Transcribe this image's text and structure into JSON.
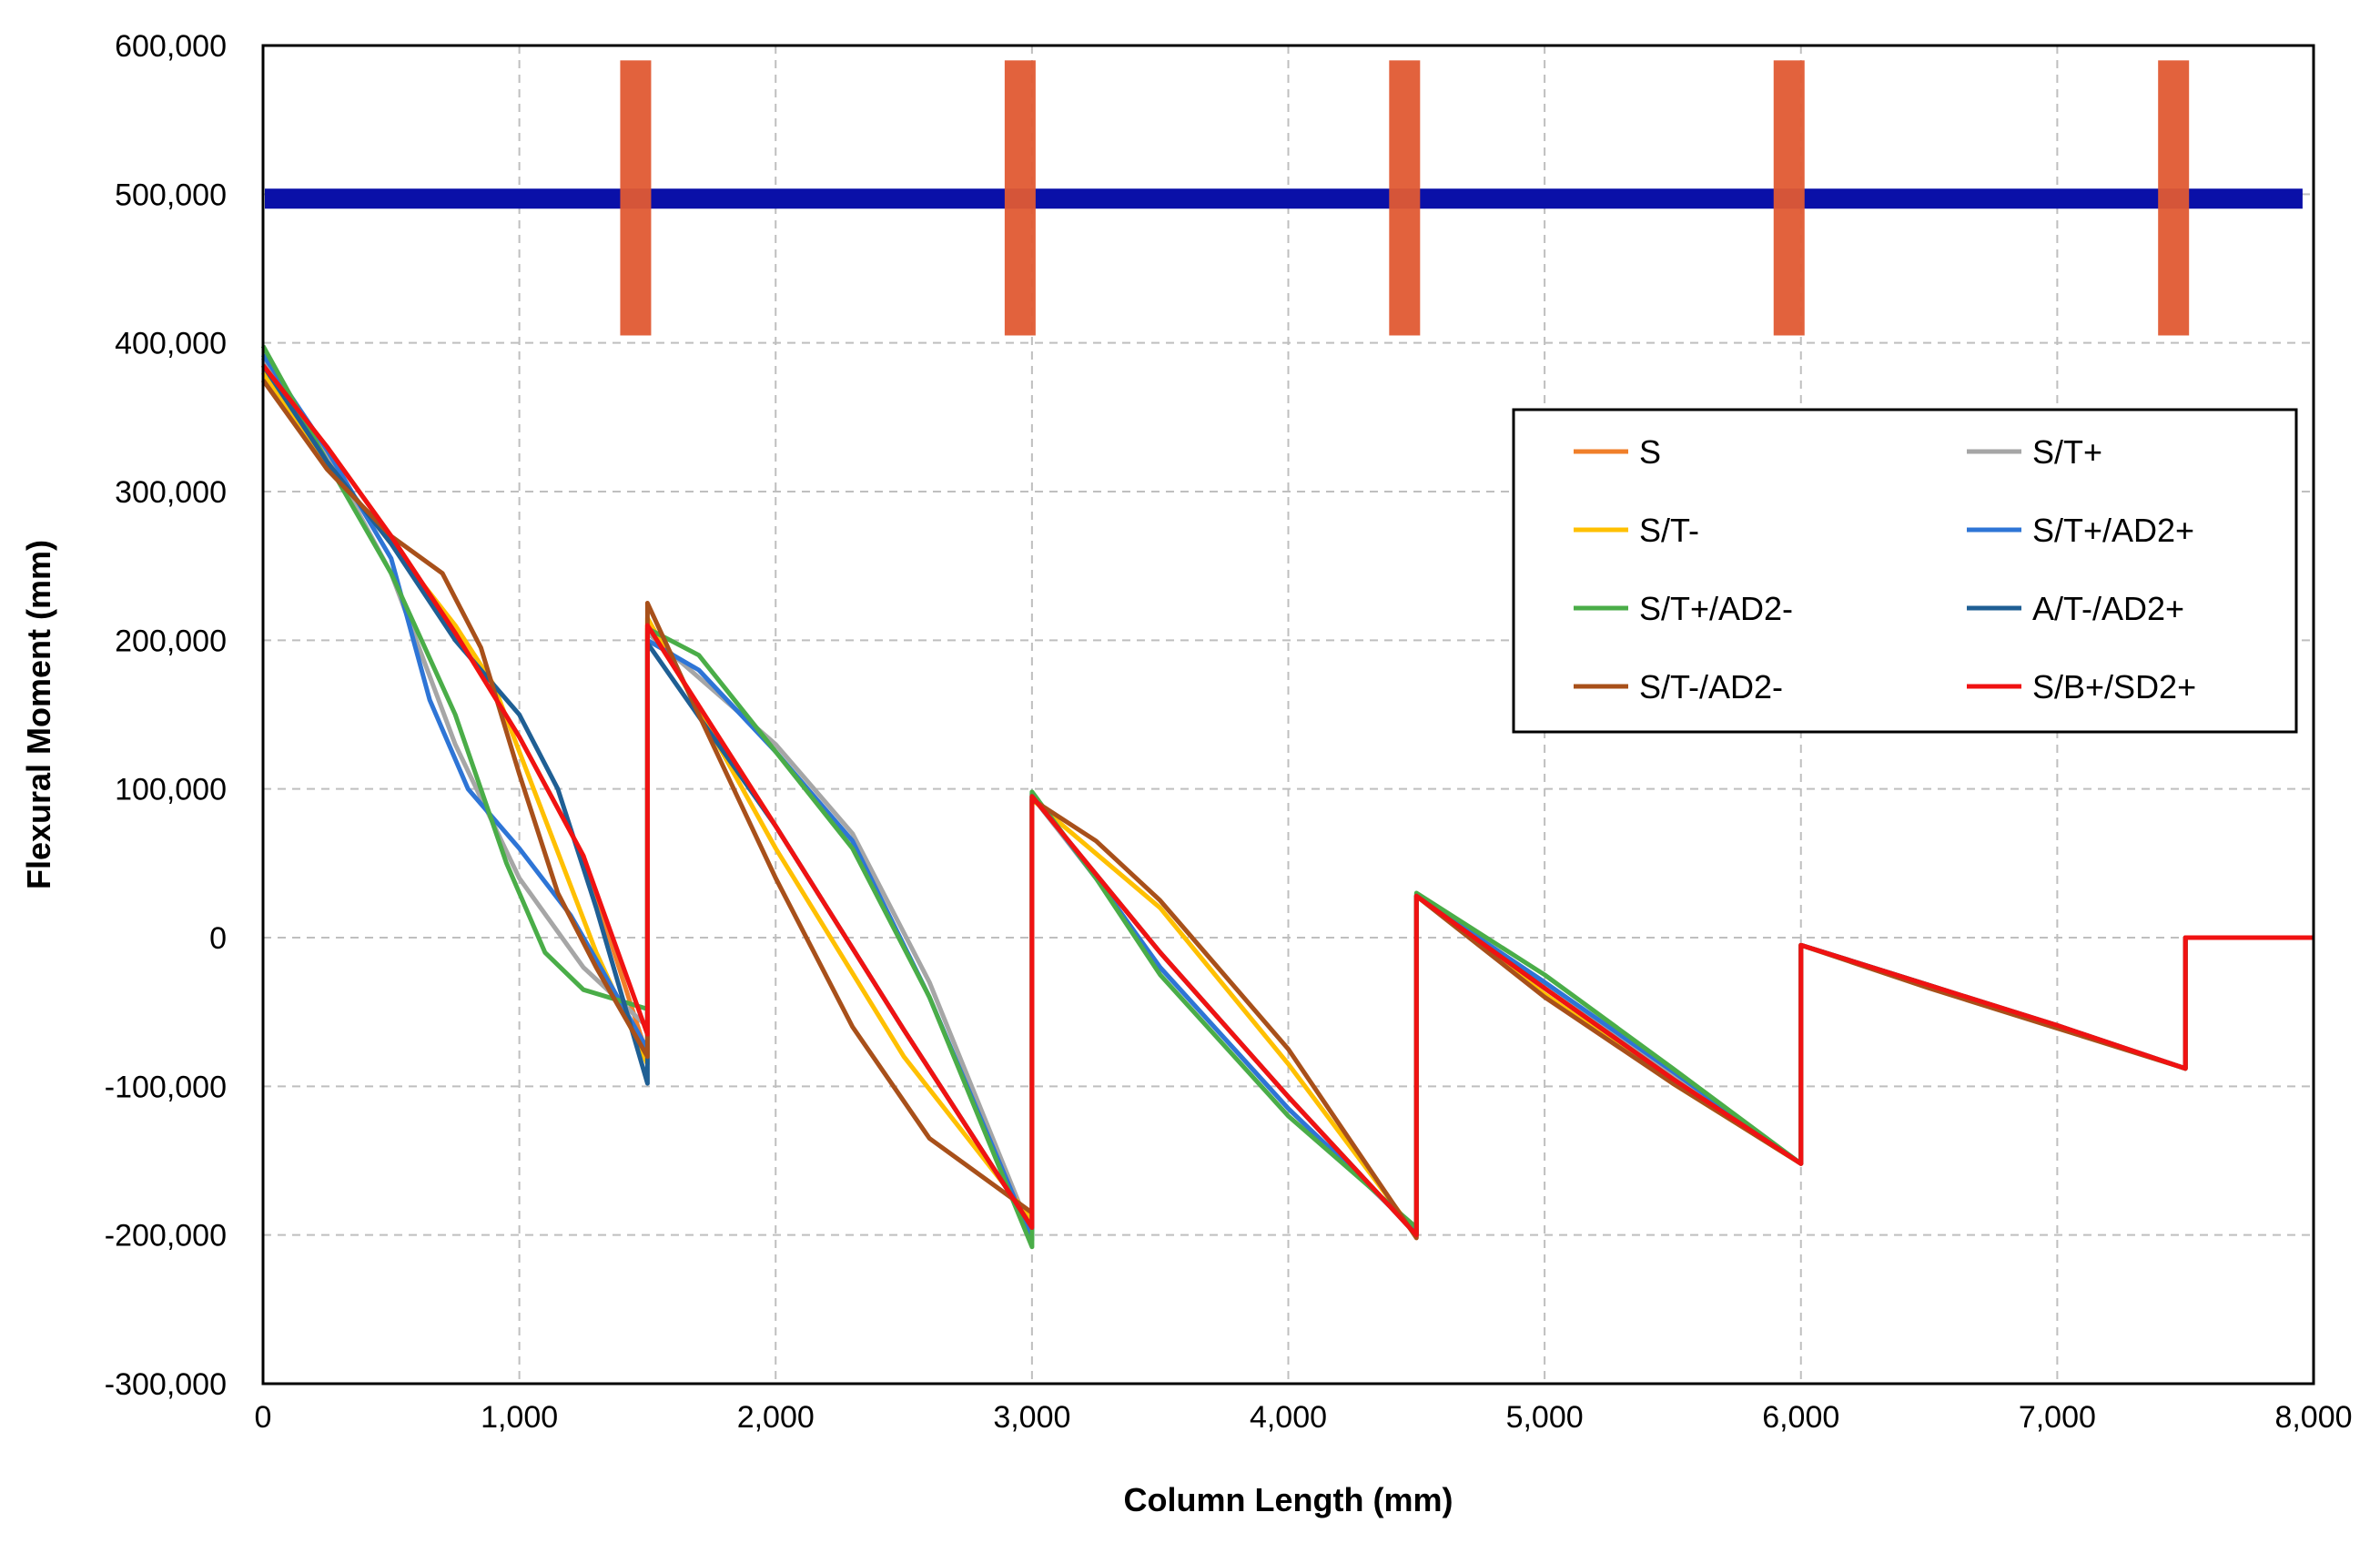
{
  "chart_data": {
    "type": "line",
    "title": "",
    "xlabel": "Column Length (mm)",
    "ylabel": "Flexural Moment (mm)",
    "xlim": [
      0,
      8000
    ],
    "ylim": [
      -300000,
      600000
    ],
    "x_ticks": [
      0,
      1000,
      2000,
      3000,
      4000,
      5000,
      6000,
      7000,
      8000
    ],
    "x_tick_labels": [
      "0",
      "1,000",
      "2,000",
      "3,000",
      "4,000",
      "5,000",
      "6,000",
      "7,000",
      "8,000"
    ],
    "y_ticks": [
      600000,
      500000,
      400000,
      300000,
      200000,
      100000,
      0,
      -100000,
      -200000,
      -300000
    ],
    "y_tick_labels": [
      "600,000",
      "500,000",
      "400,000",
      "300,000",
      "200,000",
      "100,000",
      "0",
      "-100,000",
      "-200,000",
      "-300,000"
    ],
    "grid": true,
    "legend_position": "right",
    "overlay": {
      "horizontal_band": {
        "y": 497000,
        "color": "#0a10a8"
      },
      "vertical_bars": {
        "x": [
          1500,
          3000,
          4500,
          6000,
          7500
        ],
        "y_range": [
          405000,
          590000
        ],
        "color": "#e05a33"
      }
    },
    "series": [
      {
        "name": "S",
        "color": "#f07f2a",
        "points": [
          [
            0,
            385000
          ],
          [
            250,
            330000
          ],
          [
            500,
            270000
          ],
          [
            750,
            205000
          ],
          [
            1000,
            135000
          ],
          [
            1250,
            55000
          ],
          [
            1500,
            -80000
          ],
          [
            1500,
            210000
          ],
          [
            2000,
            75000
          ],
          [
            2500,
            -62000
          ],
          [
            3000,
            -195000
          ],
          [
            3000,
            95000
          ],
          [
            3500,
            -10000
          ],
          [
            4000,
            -107000
          ],
          [
            4500,
            -200000
          ],
          [
            4500,
            28000
          ],
          [
            5000,
            -34000
          ],
          [
            5500,
            -95000
          ],
          [
            6000,
            -152000
          ],
          [
            6000,
            -5000
          ],
          [
            6500,
            -32000
          ],
          [
            7000,
            -59000
          ],
          [
            7500,
            -88000
          ],
          [
            7500,
            0
          ],
          [
            8000,
            0
          ]
        ]
      },
      {
        "name": "S/T+",
        "color": "#a6a6a6",
        "points": [
          [
            0,
            390000
          ],
          [
            250,
            325000
          ],
          [
            500,
            245000
          ],
          [
            750,
            130000
          ],
          [
            1000,
            40000
          ],
          [
            1250,
            -20000
          ],
          [
            1500,
            -60000
          ],
          [
            1500,
            205000
          ],
          [
            1700,
            175000
          ],
          [
            2000,
            130000
          ],
          [
            2300,
            70000
          ],
          [
            2600,
            -30000
          ],
          [
            3000,
            -200000
          ],
          [
            3000,
            95000
          ],
          [
            3250,
            40000
          ],
          [
            3500,
            -20000
          ],
          [
            4000,
            -115000
          ],
          [
            4500,
            -198000
          ],
          [
            4500,
            28000
          ],
          [
            5000,
            -30000
          ],
          [
            5500,
            -92000
          ],
          [
            6000,
            -152000
          ],
          [
            6000,
            -5000
          ],
          [
            6500,
            -32000
          ],
          [
            7000,
            -60000
          ],
          [
            7500,
            -88000
          ],
          [
            7500,
            0
          ],
          [
            8000,
            0
          ]
        ]
      },
      {
        "name": "S/T-",
        "color": "#ffc000",
        "points": [
          [
            0,
            380000
          ],
          [
            250,
            320000
          ],
          [
            500,
            265000
          ],
          [
            750,
            210000
          ],
          [
            900,
            170000
          ],
          [
            1100,
            80000
          ],
          [
            1300,
            -10000
          ],
          [
            1500,
            -85000
          ],
          [
            1500,
            215000
          ],
          [
            2000,
            60000
          ],
          [
            2500,
            -80000
          ],
          [
            3000,
            -190000
          ],
          [
            3000,
            93000
          ],
          [
            3500,
            20000
          ],
          [
            4000,
            -85000
          ],
          [
            4500,
            -200000
          ],
          [
            4500,
            28000
          ],
          [
            5000,
            -38000
          ],
          [
            5500,
            -98000
          ],
          [
            6000,
            -152000
          ],
          [
            6000,
            -5000
          ],
          [
            6500,
            -33000
          ],
          [
            7000,
            -60000
          ],
          [
            7500,
            -88000
          ],
          [
            7500,
            0
          ],
          [
            8000,
            0
          ]
        ]
      },
      {
        "name": "S/T+/AD2+",
        "color": "#2e75d6",
        "points": [
          [
            0,
            392000
          ],
          [
            250,
            328000
          ],
          [
            500,
            255000
          ],
          [
            650,
            160000
          ],
          [
            800,
            100000
          ],
          [
            1000,
            60000
          ],
          [
            1200,
            15000
          ],
          [
            1350,
            -30000
          ],
          [
            1500,
            -75000
          ],
          [
            1500,
            200000
          ],
          [
            1700,
            180000
          ],
          [
            2000,
            125000
          ],
          [
            2300,
            65000
          ],
          [
            2600,
            -40000
          ],
          [
            3000,
            -203000
          ],
          [
            3000,
            97000
          ],
          [
            3250,
            40000
          ],
          [
            3500,
            -20000
          ],
          [
            4000,
            -115000
          ],
          [
            4500,
            -197000
          ],
          [
            4500,
            28000
          ],
          [
            5000,
            -30000
          ],
          [
            5500,
            -90000
          ],
          [
            6000,
            -152000
          ],
          [
            6000,
            -5000
          ],
          [
            6500,
            -32000
          ],
          [
            7000,
            -60000
          ],
          [
            7500,
            -88000
          ],
          [
            7500,
            0
          ],
          [
            8000,
            0
          ]
        ]
      },
      {
        "name": "S/T+/AD2-",
        "color": "#4aad48",
        "points": [
          [
            0,
            398000
          ],
          [
            250,
            320000
          ],
          [
            500,
            245000
          ],
          [
            750,
            150000
          ],
          [
            950,
            50000
          ],
          [
            1100,
            -10000
          ],
          [
            1250,
            -35000
          ],
          [
            1500,
            -48000
          ],
          [
            1500,
            208000
          ],
          [
            1700,
            190000
          ],
          [
            2000,
            125000
          ],
          [
            2300,
            60000
          ],
          [
            2600,
            -40000
          ],
          [
            3000,
            -208000
          ],
          [
            3000,
            98000
          ],
          [
            3250,
            40000
          ],
          [
            3500,
            -25000
          ],
          [
            4000,
            -120000
          ],
          [
            4500,
            -195000
          ],
          [
            4500,
            30000
          ],
          [
            5000,
            -25000
          ],
          [
            5500,
            -88000
          ],
          [
            6000,
            -152000
          ],
          [
            6000,
            -5000
          ],
          [
            6500,
            -32000
          ],
          [
            7000,
            -60000
          ],
          [
            7500,
            -88000
          ],
          [
            7500,
            0
          ],
          [
            8000,
            0
          ]
        ]
      },
      {
        "name": "A/T-/AD2+",
        "color": "#1f5f94",
        "points": [
          [
            0,
            385000
          ],
          [
            250,
            320000
          ],
          [
            500,
            265000
          ],
          [
            750,
            200000
          ],
          [
            1000,
            150000
          ],
          [
            1150,
            100000
          ],
          [
            1300,
            20000
          ],
          [
            1500,
            -98000
          ],
          [
            1500,
            198000
          ],
          [
            2000,
            75000
          ],
          [
            2500,
            -62000
          ],
          [
            3000,
            -195000
          ],
          [
            3000,
            95000
          ],
          [
            3500,
            -10000
          ],
          [
            4000,
            -107000
          ],
          [
            4500,
            -200000
          ],
          [
            4500,
            28000
          ],
          [
            5000,
            -34000
          ],
          [
            5500,
            -95000
          ],
          [
            6000,
            -152000
          ],
          [
            6000,
            -5000
          ],
          [
            6500,
            -32000
          ],
          [
            7000,
            -59000
          ],
          [
            7500,
            -88000
          ],
          [
            7500,
            0
          ],
          [
            8000,
            0
          ]
        ]
      },
      {
        "name": "S/T-/AD2-",
        "color": "#a8501a",
        "points": [
          [
            0,
            375000
          ],
          [
            250,
            315000
          ],
          [
            500,
            270000
          ],
          [
            700,
            245000
          ],
          [
            850,
            195000
          ],
          [
            1000,
            110000
          ],
          [
            1150,
            30000
          ],
          [
            1300,
            -20000
          ],
          [
            1500,
            -80000
          ],
          [
            1500,
            225000
          ],
          [
            1700,
            150000
          ],
          [
            2000,
            40000
          ],
          [
            2300,
            -60000
          ],
          [
            2600,
            -135000
          ],
          [
            3000,
            -185000
          ],
          [
            3000,
            93000
          ],
          [
            3250,
            65000
          ],
          [
            3500,
            25000
          ],
          [
            4000,
            -75000
          ],
          [
            4500,
            -202000
          ],
          [
            4500,
            28000
          ],
          [
            5000,
            -40000
          ],
          [
            5500,
            -98000
          ],
          [
            6000,
            -152000
          ],
          [
            6000,
            -5000
          ],
          [
            6500,
            -34000
          ],
          [
            7000,
            -61000
          ],
          [
            7500,
            -88000
          ],
          [
            7500,
            0
          ],
          [
            8000,
            0
          ]
        ]
      },
      {
        "name": "S/B+/SD2+",
        "color": "#f01212",
        "points": [
          [
            0,
            385000
          ],
          [
            250,
            330000
          ],
          [
            500,
            270000
          ],
          [
            750,
            205000
          ],
          [
            1000,
            135000
          ],
          [
            1250,
            55000
          ],
          [
            1500,
            -65000
          ],
          [
            1500,
            210000
          ],
          [
            2000,
            75000
          ],
          [
            2500,
            -62000
          ],
          [
            3000,
            -195000
          ],
          [
            3000,
            95000
          ],
          [
            3500,
            -10000
          ],
          [
            4000,
            -107000
          ],
          [
            4500,
            -200000
          ],
          [
            4500,
            28000
          ],
          [
            5000,
            -34000
          ],
          [
            5500,
            -95000
          ],
          [
            6000,
            -152000
          ],
          [
            6000,
            -5000
          ],
          [
            6500,
            -32000
          ],
          [
            7000,
            -59000
          ],
          [
            7500,
            -88000
          ],
          [
            7500,
            0
          ],
          [
            8000,
            0
          ]
        ]
      }
    ]
  }
}
